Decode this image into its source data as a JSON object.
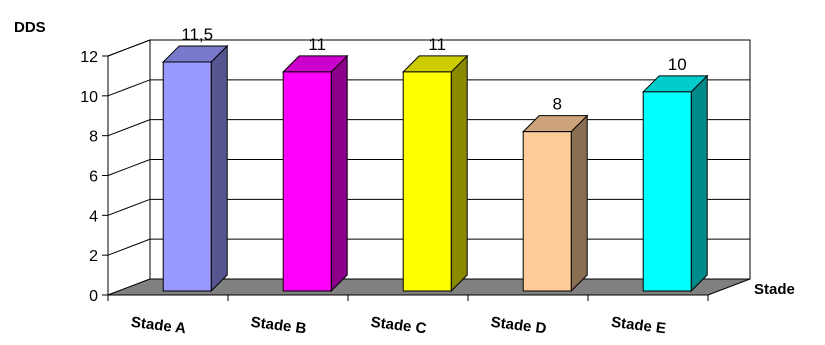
{
  "chart_data": {
    "type": "bar",
    "style": "3d-column",
    "ylabel": "DDS",
    "xlabel": "Stade",
    "categories": [
      "Stade A",
      "Stade B",
      "Stade C",
      "Stade D",
      "Stade E"
    ],
    "values": [
      11.5,
      11,
      11,
      8,
      10
    ],
    "data_labels": [
      "11,5",
      "11",
      "11",
      "8",
      "10"
    ],
    "y_ticks": [
      "0",
      "2",
      "4",
      "6",
      "8",
      "10",
      "12"
    ],
    "ylim": [
      0,
      12
    ],
    "grid": true,
    "legend": "none",
    "colors": {
      "bars": [
        "#9999ff",
        "#ff00ff",
        "#ffff00",
        "#ffcc99",
        "#00ffff"
      ],
      "bar_sides": [
        "#55558f",
        "#8a008a",
        "#8a8a00",
        "#8a6e52",
        "#008a8a"
      ],
      "bar_tops": [
        "#7a7acc",
        "#cc00cc",
        "#cccc00",
        "#cca37a",
        "#00cccc"
      ],
      "floor": "#808080",
      "grid": "#000000"
    }
  }
}
